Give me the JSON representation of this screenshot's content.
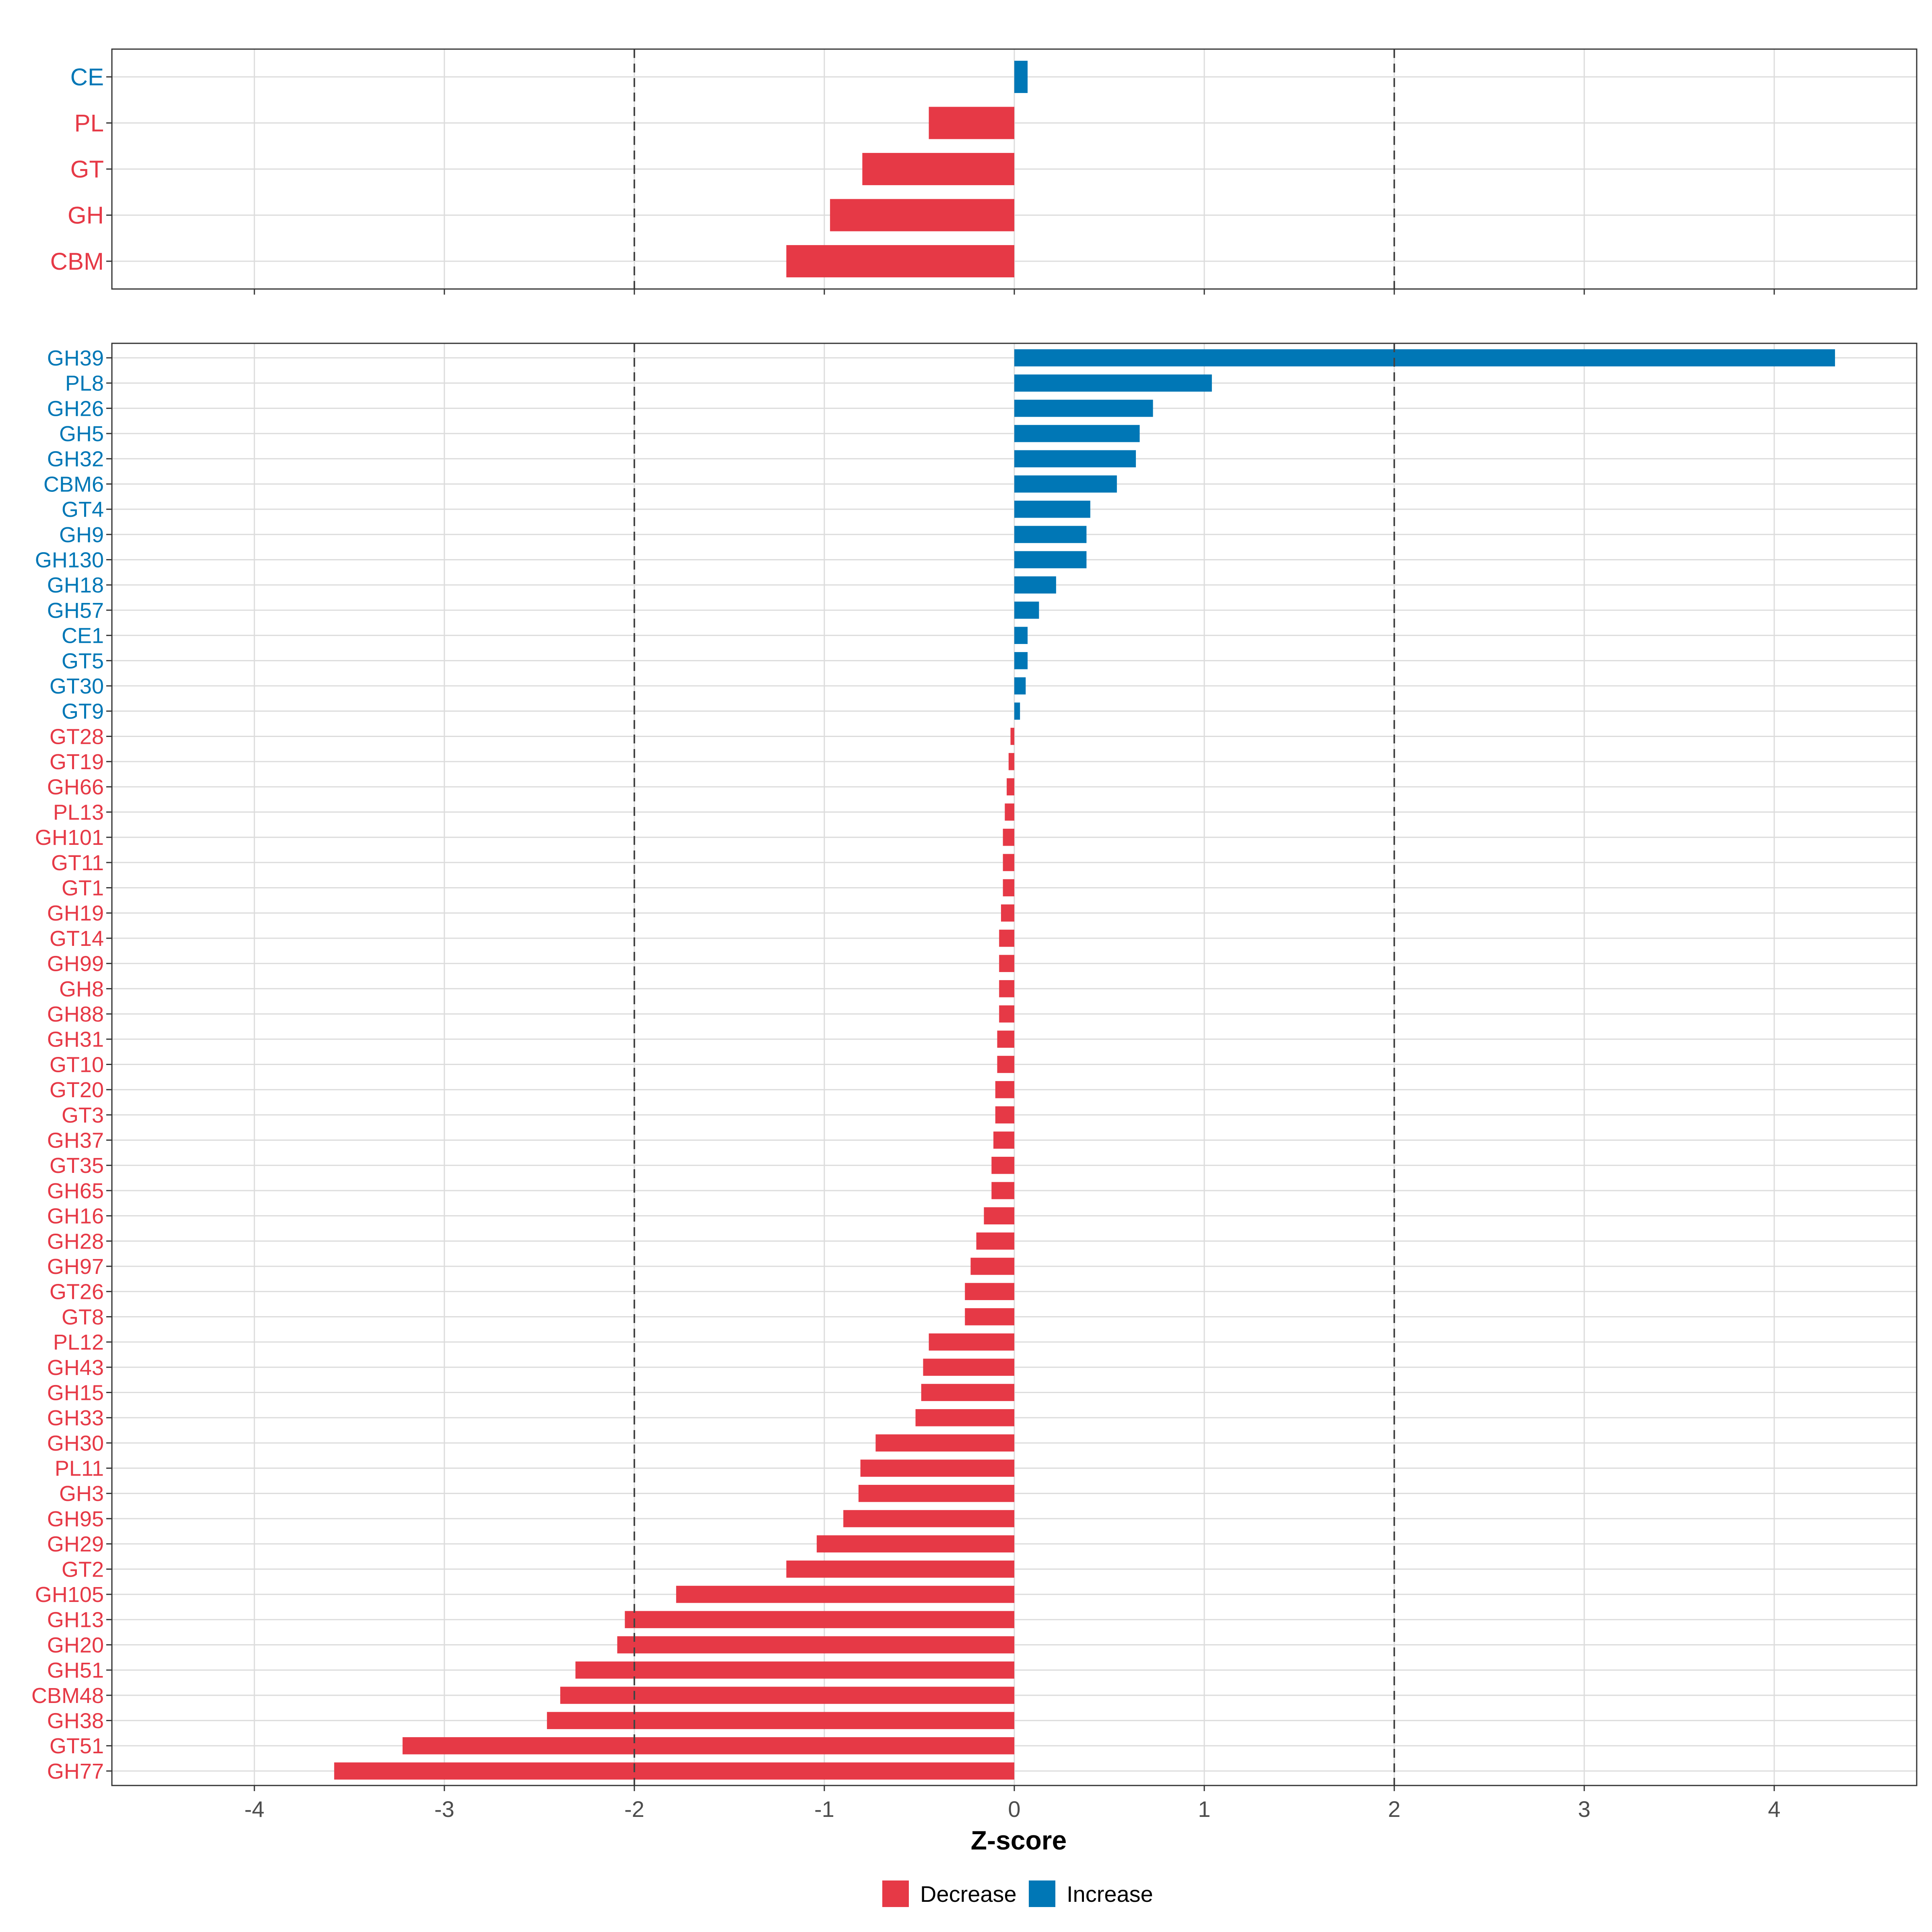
{
  "chart_data": [
    {
      "type": "bar",
      "orientation": "horizontal",
      "panel": "top",
      "title": "",
      "xlabel": "",
      "ylabel": "",
      "xlim": [
        -4.75,
        4.75
      ],
      "xticks": [
        -4,
        -3,
        -2,
        -1,
        0,
        1,
        2,
        3,
        4
      ],
      "reference_lines": [
        -2,
        2
      ],
      "grid": true,
      "categories": [
        "CE",
        "PL",
        "GT",
        "GH",
        "CBM"
      ],
      "values": [
        0.07,
        -0.45,
        -0.8,
        -0.97,
        -1.2
      ]
    },
    {
      "type": "bar",
      "orientation": "horizontal",
      "panel": "bottom",
      "title": "",
      "xlabel": "Z-score",
      "ylabel": "",
      "xlim": [
        -4.75,
        4.75
      ],
      "xticks": [
        -4,
        -3,
        -2,
        -1,
        0,
        1,
        2,
        3,
        4
      ],
      "xtick_labels": [
        "-4",
        "-3",
        "-2",
        "-1",
        "0",
        "1",
        "2",
        "3",
        "4"
      ],
      "reference_lines": [
        -2,
        2
      ],
      "grid": true,
      "categories": [
        "GH39",
        "PL8",
        "GH26",
        "GH5",
        "GH32",
        "CBM6",
        "GT4",
        "GH9",
        "GH130",
        "GH18",
        "GH57",
        "CE1",
        "GT5",
        "GT30",
        "GT9",
        "GT28",
        "GT19",
        "GH66",
        "PL13",
        "GH101",
        "GT11",
        "GT1",
        "GH19",
        "GT14",
        "GH99",
        "GH8",
        "GH88",
        "GH31",
        "GT10",
        "GT20",
        "GT3",
        "GH37",
        "GT35",
        "GH65",
        "GH16",
        "GH28",
        "GH97",
        "GT26",
        "GT8",
        "PL12",
        "GH43",
        "GH15",
        "GH33",
        "GH30",
        "PL11",
        "GH3",
        "GH95",
        "GH29",
        "GT2",
        "GH105",
        "GH13",
        "GH20",
        "GH51",
        "CBM48",
        "GH38",
        "GT51",
        "GH77"
      ],
      "values": [
        4.32,
        1.04,
        0.73,
        0.66,
        0.64,
        0.54,
        0.4,
        0.38,
        0.38,
        0.22,
        0.13,
        0.07,
        0.07,
        0.06,
        0.03,
        -0.02,
        -0.03,
        -0.04,
        -0.05,
        -0.06,
        -0.06,
        -0.06,
        -0.07,
        -0.08,
        -0.08,
        -0.08,
        -0.08,
        -0.09,
        -0.09,
        -0.1,
        -0.1,
        -0.11,
        -0.12,
        -0.12,
        -0.16,
        -0.2,
        -0.23,
        -0.26,
        -0.26,
        -0.45,
        -0.48,
        -0.49,
        -0.52,
        -0.73,
        -0.81,
        -0.82,
        -0.9,
        -1.04,
        -1.2,
        -1.78,
        -2.05,
        -2.09,
        -2.31,
        -2.39,
        -2.46,
        -3.22,
        -3.58
      ]
    }
  ],
  "legend": {
    "position": "bottom",
    "items": [
      {
        "label": "Decrease",
        "color": "#e63946"
      },
      {
        "label": "Increase",
        "color": "#0077b6"
      }
    ]
  }
}
